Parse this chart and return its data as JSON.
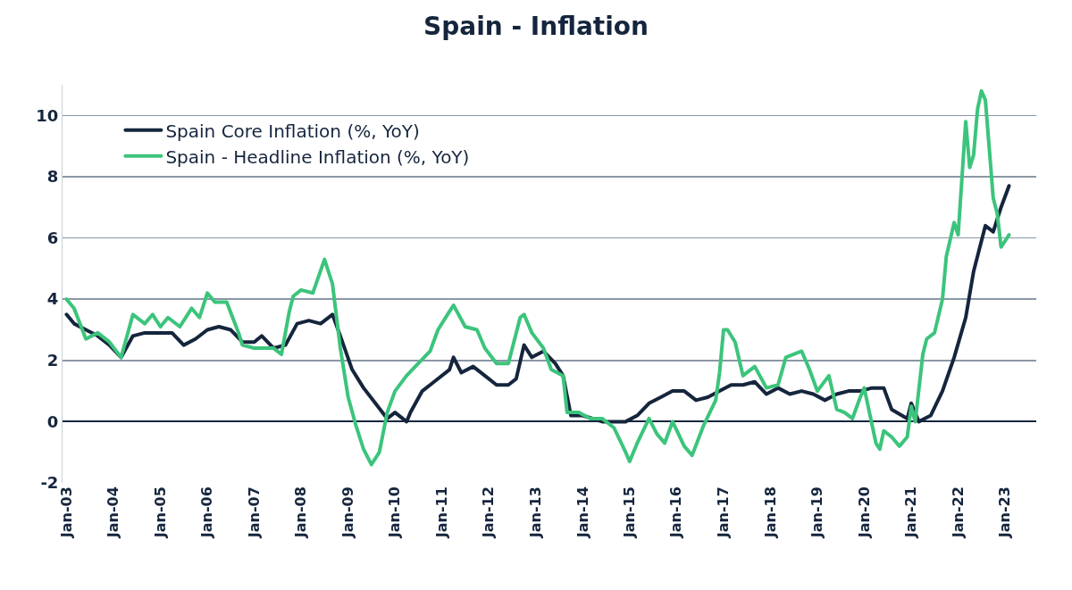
{
  "chart_data": {
    "type": "line",
    "title": "Spain - Inflation",
    "series": [
      {
        "name": "Spain Core Inflation (%, YoY)",
        "color": "#15253d",
        "x": [
          "2003-01",
          "2003-03",
          "2003-06",
          "2003-09",
          "2003-12",
          "2004-03",
          "2004-06",
          "2004-09",
          "2005-01",
          "2005-04",
          "2005-07",
          "2005-10",
          "2006-01",
          "2006-04",
          "2006-07",
          "2006-10",
          "2007-01",
          "2007-03",
          "2007-06",
          "2007-09",
          "2007-12",
          "2008-03",
          "2008-06",
          "2008-09",
          "2008-11",
          "2009-02",
          "2009-05",
          "2009-08",
          "2009-11",
          "2010-01",
          "2010-04",
          "2010-05",
          "2010-08",
          "2010-11",
          "2011-03",
          "2011-04",
          "2011-06",
          "2011-09",
          "2011-12",
          "2012-03",
          "2012-06",
          "2012-08",
          "2012-10",
          "2012-12",
          "2013-03",
          "2013-06",
          "2013-08",
          "2013-10",
          "2014-01",
          "2014-06",
          "2014-09",
          "2014-12",
          "2015-03",
          "2015-06",
          "2015-09",
          "2015-12",
          "2016-03",
          "2016-06",
          "2016-09",
          "2016-12",
          "2017-03",
          "2017-06",
          "2017-09",
          "2017-12",
          "2018-03",
          "2018-06",
          "2018-09",
          "2018-12",
          "2019-03",
          "2019-06",
          "2019-09",
          "2019-12",
          "2020-03",
          "2020-06",
          "2020-08",
          "2020-12",
          "2021-01",
          "2021-03",
          "2021-06",
          "2021-09",
          "2021-12",
          "2022-03",
          "2022-05",
          "2022-08",
          "2022-10",
          "2022-12",
          "2023-02"
        ],
        "values": [
          3.5,
          3.2,
          3.0,
          2.8,
          2.5,
          2.1,
          2.8,
          2.9,
          2.9,
          2.9,
          2.5,
          2.7,
          3.0,
          3.1,
          3.0,
          2.6,
          2.6,
          2.8,
          2.4,
          2.5,
          3.2,
          3.3,
          3.2,
          3.5,
          2.8,
          1.7,
          1.1,
          0.6,
          0.1,
          0.3,
          0.0,
          0.3,
          1.0,
          1.3,
          1.7,
          2.1,
          1.6,
          1.8,
          1.5,
          1.2,
          1.2,
          1.4,
          2.5,
          2.1,
          2.3,
          1.9,
          1.5,
          0.2,
          0.2,
          0.0,
          0.0,
          0.0,
          0.2,
          0.6,
          0.8,
          1.0,
          1.0,
          0.7,
          0.8,
          1.0,
          1.2,
          1.2,
          1.3,
          0.9,
          1.1,
          0.9,
          1.0,
          0.9,
          0.7,
          0.9,
          1.0,
          1.0,
          1.1,
          1.1,
          0.4,
          0.1,
          0.6,
          0.0,
          0.2,
          1.0,
          2.1,
          3.4,
          4.9,
          6.4,
          6.2,
          7.0,
          7.7
        ]
      },
      {
        "name": "Spain - Headline Inflation (%, YoY)",
        "color": "#3cc47c",
        "x": [
          "2003-01",
          "2003-03",
          "2003-06",
          "2003-09",
          "2003-12",
          "2004-03",
          "2004-06",
          "2004-09",
          "2004-11",
          "2005-01",
          "2005-03",
          "2005-06",
          "2005-09",
          "2005-11",
          "2006-01",
          "2006-03",
          "2006-06",
          "2006-09",
          "2006-10",
          "2007-01",
          "2007-06",
          "2007-08",
          "2007-10",
          "2007-11",
          "2008-01",
          "2008-04",
          "2008-07",
          "2008-09",
          "2008-11",
          "2009-01",
          "2009-03",
          "2009-05",
          "2009-07",
          "2009-09",
          "2009-11",
          "2010-01",
          "2010-04",
          "2010-07",
          "2010-10",
          "2010-12",
          "2011-03",
          "2011-04",
          "2011-07",
          "2011-10",
          "2011-12",
          "2012-03",
          "2012-06",
          "2012-09",
          "2012-10",
          "2012-12",
          "2013-03",
          "2013-05",
          "2013-08",
          "2013-09",
          "2013-12",
          "2014-03",
          "2014-06",
          "2014-09",
          "2014-12",
          "2015-01",
          "2015-03",
          "2015-06",
          "2015-08",
          "2015-10",
          "2015-12",
          "2016-03",
          "2016-05",
          "2016-08",
          "2016-11",
          "2016-12",
          "2017-01",
          "2017-02",
          "2017-04",
          "2017-06",
          "2017-09",
          "2017-12",
          "2018-03",
          "2018-05",
          "2018-07",
          "2018-09",
          "2018-11",
          "2019-01",
          "2019-04",
          "2019-06",
          "2019-08",
          "2019-10",
          "2019-12",
          "2020-01",
          "2020-04",
          "2020-05",
          "2020-06",
          "2020-08",
          "2020-10",
          "2020-12",
          "2021-01",
          "2021-02",
          "2021-04",
          "2021-05",
          "2021-07",
          "2021-09",
          "2021-10",
          "2021-12",
          "2022-01",
          "2022-03",
          "2022-04",
          "2022-05",
          "2022-06",
          "2022-07",
          "2022-08",
          "2022-10",
          "2022-11",
          "2022-12",
          "2023-01",
          "2023-02"
        ],
        "values": [
          4.0,
          3.7,
          2.7,
          2.9,
          2.6,
          2.1,
          3.5,
          3.2,
          3.5,
          3.1,
          3.4,
          3.1,
          3.7,
          3.4,
          4.2,
          3.9,
          3.9,
          2.9,
          2.5,
          2.4,
          2.4,
          2.2,
          3.6,
          4.1,
          4.3,
          4.2,
          5.3,
          4.5,
          2.4,
          0.8,
          -0.1,
          -0.9,
          -1.4,
          -1.0,
          0.3,
          1.0,
          1.5,
          1.9,
          2.3,
          3.0,
          3.6,
          3.8,
          3.1,
          3.0,
          2.4,
          1.9,
          1.9,
          3.4,
          3.5,
          2.9,
          2.4,
          1.7,
          1.5,
          0.3,
          0.3,
          0.1,
          0.1,
          -0.2,
          -1.0,
          -1.3,
          -0.7,
          0.1,
          -0.4,
          -0.7,
          0.0,
          -0.8,
          -1.1,
          -0.1,
          0.7,
          1.6,
          3.0,
          3.0,
          2.6,
          1.5,
          1.8,
          1.1,
          1.2,
          2.1,
          2.2,
          2.3,
          1.7,
          1.0,
          1.5,
          0.4,
          0.3,
          0.1,
          0.8,
          1.1,
          -0.7,
          -0.9,
          -0.3,
          -0.5,
          -0.8,
          -0.5,
          0.5,
          0.0,
          2.2,
          2.7,
          2.9,
          4.0,
          5.4,
          6.5,
          6.1,
          9.8,
          8.3,
          8.7,
          10.2,
          10.8,
          10.5,
          7.3,
          6.8,
          5.7,
          5.9,
          6.1
        ]
      }
    ],
    "xlim": [
      "2002-12",
      "2023-09"
    ],
    "xticks": [
      {
        "value": "2003-01",
        "label": "Jan-03"
      },
      {
        "value": "2004-01",
        "label": "Jan-04"
      },
      {
        "value": "2005-01",
        "label": "Jan-05"
      },
      {
        "value": "2006-01",
        "label": "Jan-06"
      },
      {
        "value": "2007-01",
        "label": "Jan-07"
      },
      {
        "value": "2008-01",
        "label": "Jan-08"
      },
      {
        "value": "2009-01",
        "label": "Jan-09"
      },
      {
        "value": "2010-01",
        "label": "Jan-10"
      },
      {
        "value": "2011-01",
        "label": "Jan-11"
      },
      {
        "value": "2012-01",
        "label": "Jan-12"
      },
      {
        "value": "2013-01",
        "label": "Jan-13"
      },
      {
        "value": "2014-01",
        "label": "Jan-14"
      },
      {
        "value": "2015-01",
        "label": "Jan-15"
      },
      {
        "value": "2016-01",
        "label": "Jan-16"
      },
      {
        "value": "2017-01",
        "label": "Jan-17"
      },
      {
        "value": "2018-01",
        "label": "Jan-18"
      },
      {
        "value": "2019-01",
        "label": "Jan-19"
      },
      {
        "value": "2020-01",
        "label": "Jan-20"
      },
      {
        "value": "2021-01",
        "label": "Jan-21"
      },
      {
        "value": "2022-01",
        "label": "Jan-22"
      },
      {
        "value": "2023-01",
        "label": "Jan-23"
      }
    ],
    "ylim": [
      -2,
      11
    ],
    "yticks": [
      -2,
      0,
      2,
      4,
      6,
      8,
      10
    ],
    "grid": "y",
    "legend": "top left",
    "marker": "none",
    "line_style": "solid"
  }
}
